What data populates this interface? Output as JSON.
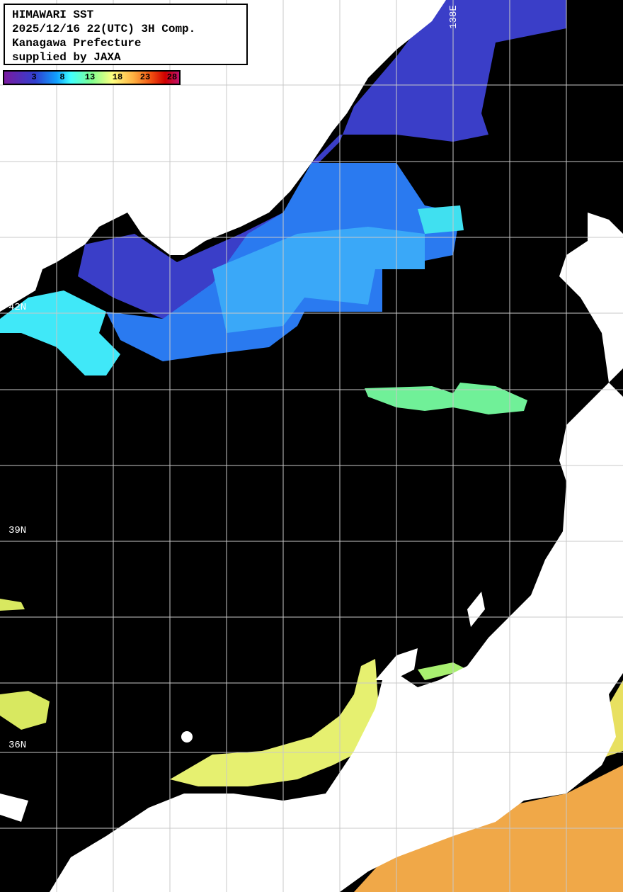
{
  "title": {
    "lines": [
      "HIMAWARI SST",
      "2025/12/16 22(UTC) 3H Comp.",
      "Kanagawa Prefecture",
      "supplied by JAXA"
    ]
  },
  "legend": {
    "ticks": [
      "3",
      "8",
      "13",
      "18",
      "23",
      "28"
    ],
    "colors": [
      "#7a1aa0",
      "#3040d0",
      "#10a0ff",
      "#40ffff",
      "#80ff90",
      "#ffff80",
      "#ffb040",
      "#f05010",
      "#d00000",
      "#c0106a"
    ]
  },
  "grid": {
    "lat_labels": [
      "42N",
      "39N",
      "36N"
    ],
    "lon_labels": [
      "138E"
    ]
  },
  "colors": {
    "land": "#ffffff",
    "no_data": "#000000",
    "grid": "#c8c8c8"
  }
}
